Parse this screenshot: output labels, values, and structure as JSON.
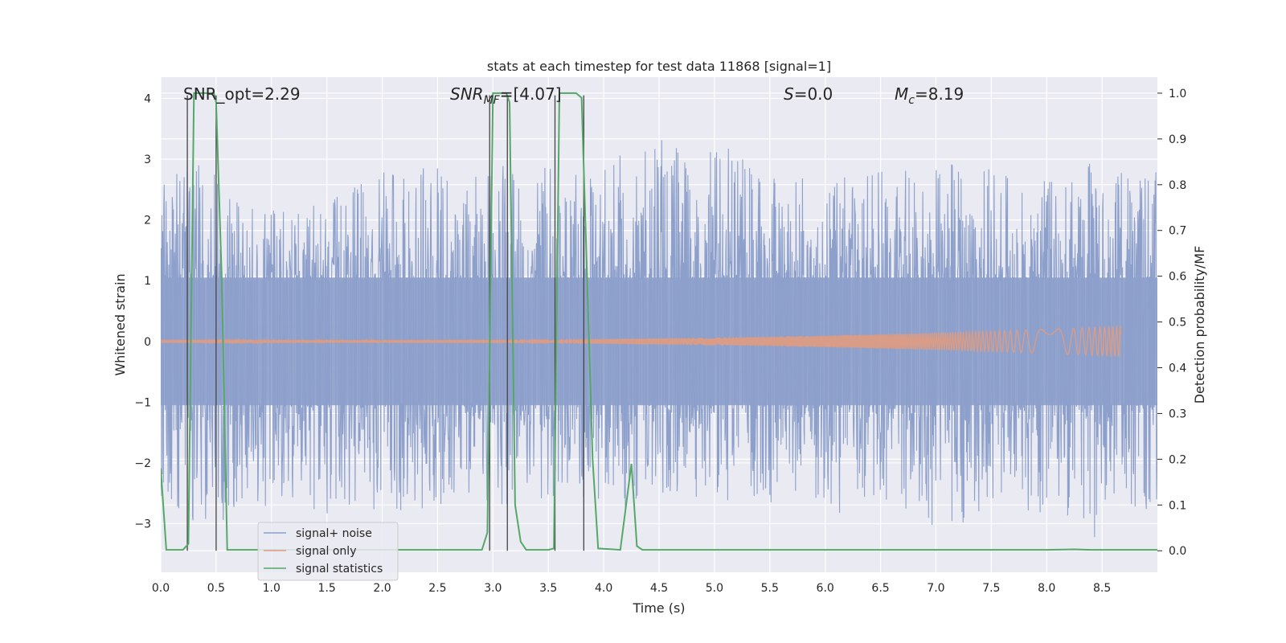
{
  "chart_data": {
    "type": "line",
    "title": "stats at each timestep for test data 11868 [signal=1]",
    "xlabel": "Time (s)",
    "ylabel_left": "Whitened strain",
    "ylabel_right": "Detection probability/MF",
    "xlim": [
      0.0,
      9.0
    ],
    "ylim_left": [
      -3.8,
      4.35
    ],
    "ylim_right": [
      -0.047,
      1.035
    ],
    "x_ticks": [
      "0.0",
      "0.5",
      "1.0",
      "1.5",
      "2.0",
      "2.5",
      "3.0",
      "3.5",
      "4.0",
      "4.5",
      "5.0",
      "5.5",
      "6.0",
      "6.5",
      "7.0",
      "7.5",
      "8.0",
      "8.5"
    ],
    "x_tick_values": [
      0.0,
      0.5,
      1.0,
      1.5,
      2.0,
      2.5,
      3.0,
      3.5,
      4.0,
      4.5,
      5.0,
      5.5,
      6.0,
      6.5,
      7.0,
      7.5,
      8.0,
      8.5
    ],
    "y_left_ticks": [
      "−3",
      "−2",
      "−1",
      "0",
      "1",
      "2",
      "3",
      "4"
    ],
    "y_left_tick_values": [
      -3,
      -2,
      -1,
      0,
      1,
      2,
      3,
      4
    ],
    "y_right_ticks": [
      "0.0",
      "0.1",
      "0.2",
      "0.3",
      "0.4",
      "0.5",
      "0.6",
      "0.7",
      "0.8",
      "0.9",
      "1.0"
    ],
    "y_right_tick_values": [
      0.0,
      0.1,
      0.2,
      0.3,
      0.4,
      0.5,
      0.6,
      0.7,
      0.8,
      0.9,
      1.0
    ],
    "grid": true,
    "legend_placement": "lower-left",
    "annotations": {
      "snr_opt": "SNR_opt=2.29",
      "snr_mf_base": "SNR",
      "snr_mf_sub": "MF",
      "snr_mf_rest": "=[4.07]",
      "s_var": "S",
      "s_rest": "=0.0",
      "mc_var": "M",
      "mc_sub": "c",
      "mc_rest": "=8.19"
    },
    "series": [
      {
        "name": "signal+ noise",
        "axis": "left",
        "color": "#8da0cb",
        "envelope": {
          "t": [
            0.0,
            0.3,
            0.6,
            0.9,
            1.2,
            1.5,
            1.8,
            2.1,
            2.4,
            2.7,
            3.0,
            3.3,
            3.6,
            3.9,
            4.2,
            4.5,
            4.8,
            5.1,
            5.4,
            5.7,
            6.0,
            6.3,
            6.6,
            6.9,
            7.2,
            7.5,
            7.8,
            8.1,
            8.4,
            8.7,
            9.0
          ],
          "upper": [
            2.6,
            3.0,
            2.9,
            2.4,
            2.2,
            2.3,
            2.6,
            2.9,
            3.3,
            2.4,
            3.1,
            2.9,
            2.9,
            2.7,
            3.2,
            3.5,
            2.9,
            3.3,
            2.8,
            2.9,
            2.7,
            2.7,
            2.9,
            3.1,
            3.0,
            2.9,
            2.6,
            2.8,
            3.1,
            2.9,
            2.9
          ],
          "lower": [
            -2.6,
            -3.0,
            -3.2,
            -3.0,
            -2.7,
            -2.9,
            -2.8,
            -2.8,
            -3.0,
            -2.9,
            -2.6,
            -2.9,
            -2.5,
            -2.6,
            -2.8,
            -2.5,
            -2.6,
            -2.7,
            -2.8,
            -2.7,
            -2.8,
            -2.9,
            -2.6,
            -3.0,
            -3.1,
            -2.9,
            -2.9,
            -3.0,
            -3.3,
            -3.0,
            -2.8
          ]
        }
      },
      {
        "name": "signal only",
        "axis": "left",
        "color": "#e09b80",
        "chirp": {
          "t_start": 0.0,
          "t_end": 8.67,
          "amp_start": 0.02,
          "amp_end": 0.25
        }
      },
      {
        "name": "signal statistics",
        "axis": "right",
        "color": "#55a868",
        "t": [
          0.0,
          0.05,
          0.2,
          0.25,
          0.3,
          0.48,
          0.5,
          0.55,
          0.6,
          1.0,
          1.5,
          2.0,
          2.5,
          2.9,
          2.95,
          3.0,
          3.12,
          3.15,
          3.2,
          3.25,
          3.3,
          3.5,
          3.55,
          3.6,
          3.75,
          3.8,
          3.85,
          3.9,
          3.95,
          4.15,
          4.25,
          4.3,
          4.35,
          5.0,
          6.0,
          7.0,
          8.0,
          8.25,
          8.4,
          9.0
        ],
        "p": [
          0.18,
          0.002,
          0.002,
          0.015,
          1.0,
          1.0,
          0.98,
          0.6,
          0.002,
          0.002,
          0.002,
          0.002,
          0.002,
          0.002,
          0.04,
          1.0,
          1.0,
          0.98,
          0.1,
          0.02,
          0.002,
          0.002,
          0.005,
          1.0,
          1.0,
          0.99,
          0.6,
          0.2,
          0.005,
          0.002,
          0.19,
          0.01,
          0.002,
          0.002,
          0.002,
          0.002,
          0.002,
          0.003,
          0.002,
          0.002
        ]
      }
    ],
    "vertical_markers": [
      0.24,
      0.5,
      2.97,
      3.13,
      3.56,
      3.82
    ]
  }
}
